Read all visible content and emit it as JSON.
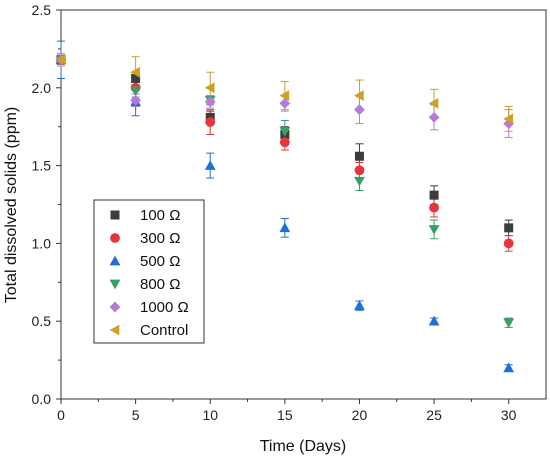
{
  "chart_data": {
    "type": "scatter",
    "xlabel": "Time (Days)",
    "ylabel": "Total dissolved solids (ppm)",
    "xlim": [
      0,
      32.5
    ],
    "ylim": [
      0,
      2.5
    ],
    "x_ticks": [
      "0",
      "5",
      "10",
      "15",
      "20",
      "25",
      "30"
    ],
    "y_ticks": [
      "0.0",
      "0.5",
      "1.0",
      "1.5",
      "2.0",
      "2.5"
    ],
    "x": [
      0,
      5,
      10,
      15,
      20,
      25,
      30
    ],
    "legend_position": "left-center",
    "grid": false,
    "series": [
      {
        "name": "100 Ω",
        "marker": "square",
        "color": "#3d3d3d",
        "values": [
          2.18,
          2.06,
          1.81,
          1.7,
          1.56,
          1.31,
          1.1
        ],
        "errors": [
          0.03,
          0.04,
          0.04,
          0.05,
          0.08,
          0.06,
          0.05
        ]
      },
      {
        "name": "300 Ω",
        "marker": "circle",
        "color": "#e8353a",
        "values": [
          2.18,
          2.0,
          1.78,
          1.65,
          1.47,
          1.23,
          1.0
        ],
        "errors": [
          0.03,
          0.04,
          0.08,
          0.05,
          0.05,
          0.06,
          0.05
        ]
      },
      {
        "name": "500 Ω",
        "marker": "triangle-up",
        "color": "#1f6fd8",
        "values": [
          2.18,
          1.91,
          1.5,
          1.1,
          0.6,
          0.5,
          0.2
        ],
        "errors": [
          0.12,
          0.09,
          0.08,
          0.06,
          0.03,
          0.02,
          0.02
        ]
      },
      {
        "name": "800 Ω",
        "marker": "triangle-down",
        "color": "#3a9e68",
        "values": [
          2.18,
          1.98,
          1.92,
          1.72,
          1.4,
          1.09,
          0.49
        ],
        "errors": [
          0.03,
          0.04,
          0.03,
          0.07,
          0.06,
          0.06,
          0.03
        ]
      },
      {
        "name": "1000 Ω",
        "marker": "diamond",
        "color": "#b57bd8",
        "values": [
          2.18,
          1.92,
          1.91,
          1.9,
          1.86,
          1.81,
          1.77
        ],
        "errors": [
          0.03,
          0.04,
          0.04,
          0.05,
          0.09,
          0.08,
          0.09
        ]
      },
      {
        "name": "Control",
        "marker": "triangle-left",
        "color": "#c9a227",
        "values": [
          2.18,
          2.1,
          2.0,
          1.95,
          1.95,
          1.9,
          1.8
        ],
        "errors": [
          0.04,
          0.1,
          0.1,
          0.09,
          0.1,
          0.09,
          0.08
        ]
      }
    ]
  }
}
